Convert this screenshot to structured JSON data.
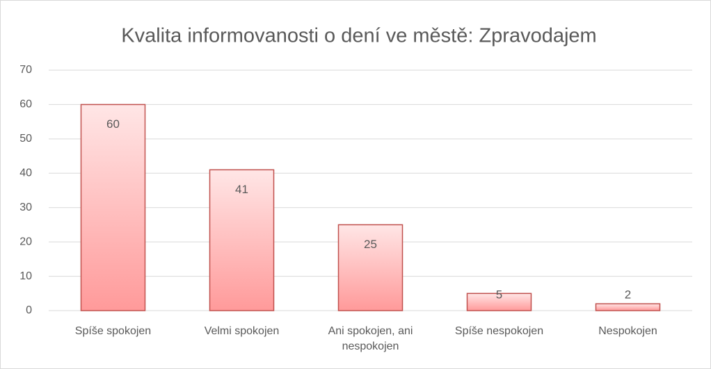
{
  "chart_data": {
    "type": "bar",
    "title": "Kvalita informovanosti o dení ve městě: Zpravodajem",
    "categories": [
      "Spíše spokojen",
      "Velmi spokojen",
      "Ani spokojen, ani nespokojen",
      "Spíše nespokojen",
      "Nespokojen"
    ],
    "values": [
      60,
      41,
      25,
      5,
      2
    ],
    "color": "#c0504d",
    "ylim": [
      0,
      70
    ],
    "yticks": [
      0,
      10,
      20,
      30,
      40,
      50,
      60,
      70
    ],
    "grid": true
  }
}
